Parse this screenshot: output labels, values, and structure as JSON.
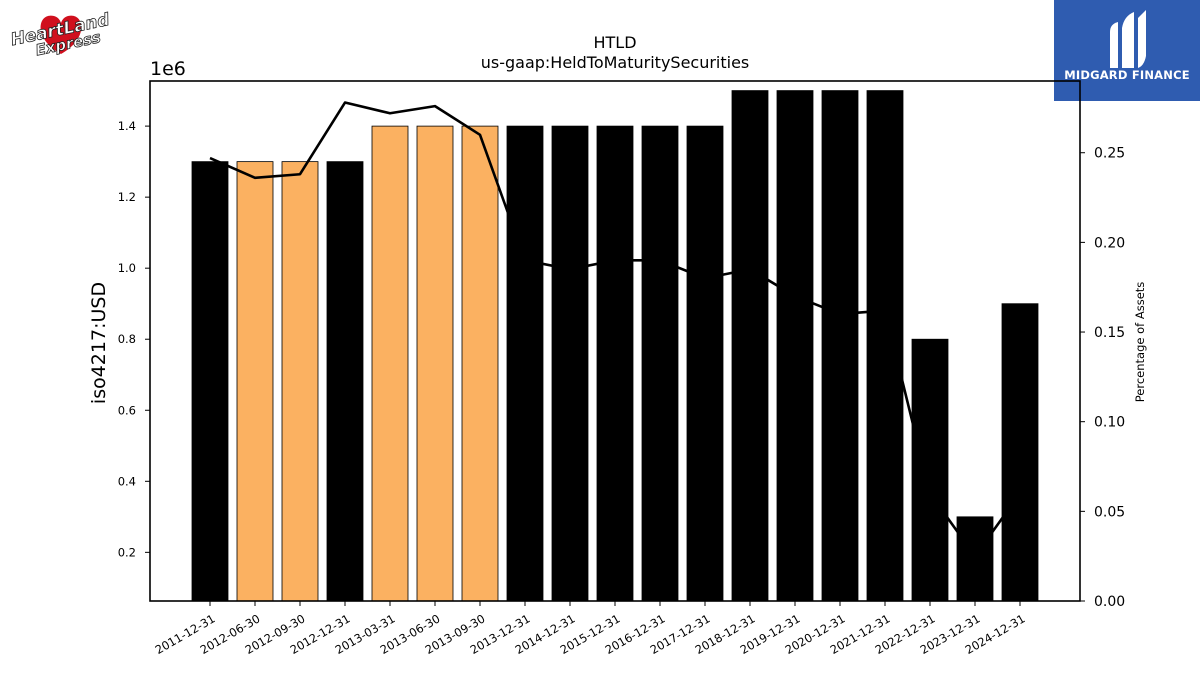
{
  "logos": {
    "left": {
      "line1": "HeartLand",
      "line2": "Express",
      "color": "#d0101e"
    },
    "right": {
      "name": "MIDGARD FINANCE",
      "background": "#2f5cb0"
    }
  },
  "chart_data": {
    "type": "bar",
    "title": "HTLD",
    "subtitle": "us-gaap:HeldToMaturitySecurities",
    "ylabel": "iso4217:USD",
    "y2label": "Percentage of Assets",
    "y_offset_label": "1e6",
    "categories": [
      "2011-12-31",
      "2012-06-30",
      "2012-09-30",
      "2012-12-31",
      "2013-03-31",
      "2013-06-30",
      "2013-09-30",
      "2013-12-31",
      "2014-12-31",
      "2015-12-31",
      "2016-12-31",
      "2017-12-31",
      "2018-12-31",
      "2019-12-31",
      "2020-12-31",
      "2021-12-31",
      "2022-12-31",
      "2023-12-31",
      "2024-12-31"
    ],
    "values": [
      1300000,
      1300000,
      1300000,
      1300000,
      1400000,
      1400000,
      1400000,
      1400000,
      1400000,
      1400000,
      1400000,
      1400000,
      1500000,
      1500000,
      1500000,
      1500000,
      800000,
      300000,
      900000
    ],
    "bar_colors": [
      "#000000",
      "#fbb161",
      "#fbb161",
      "#000000",
      "#fbb161",
      "#fbb161",
      "#fbb161",
      "#000000",
      "#000000",
      "#000000",
      "#000000",
      "#000000",
      "#000000",
      "#000000",
      "#000000",
      "#000000",
      "#000000",
      "#000000",
      "#000000"
    ],
    "line_series": {
      "values": [
        0.247,
        0.236,
        0.238,
        0.278,
        0.272,
        0.276,
        0.26,
        0.19,
        0.185,
        0.19,
        0.19,
        0.18,
        0.185,
        0.17,
        0.16,
        0.162,
        0.06,
        0.025,
        0.06
      ]
    },
    "ylim": [
      0.063,
      1.527
    ],
    "y_ticks": [
      0.2,
      0.4,
      0.6,
      0.8,
      1.0,
      1.2,
      1.4
    ],
    "y_tick_labels": [
      "0.2",
      "0.4",
      "0.6",
      "0.8",
      "1.0",
      "1.2",
      "1.4"
    ],
    "y2lim": [
      0,
      0.29
    ],
    "y2_ticks": [
      0,
      0.05,
      0.1,
      0.15,
      0.2,
      0.25
    ],
    "y2_tick_labels": [
      "0.00",
      "0.05",
      "0.10",
      "0.15",
      "0.20",
      "0.25"
    ],
    "grid": false
  }
}
